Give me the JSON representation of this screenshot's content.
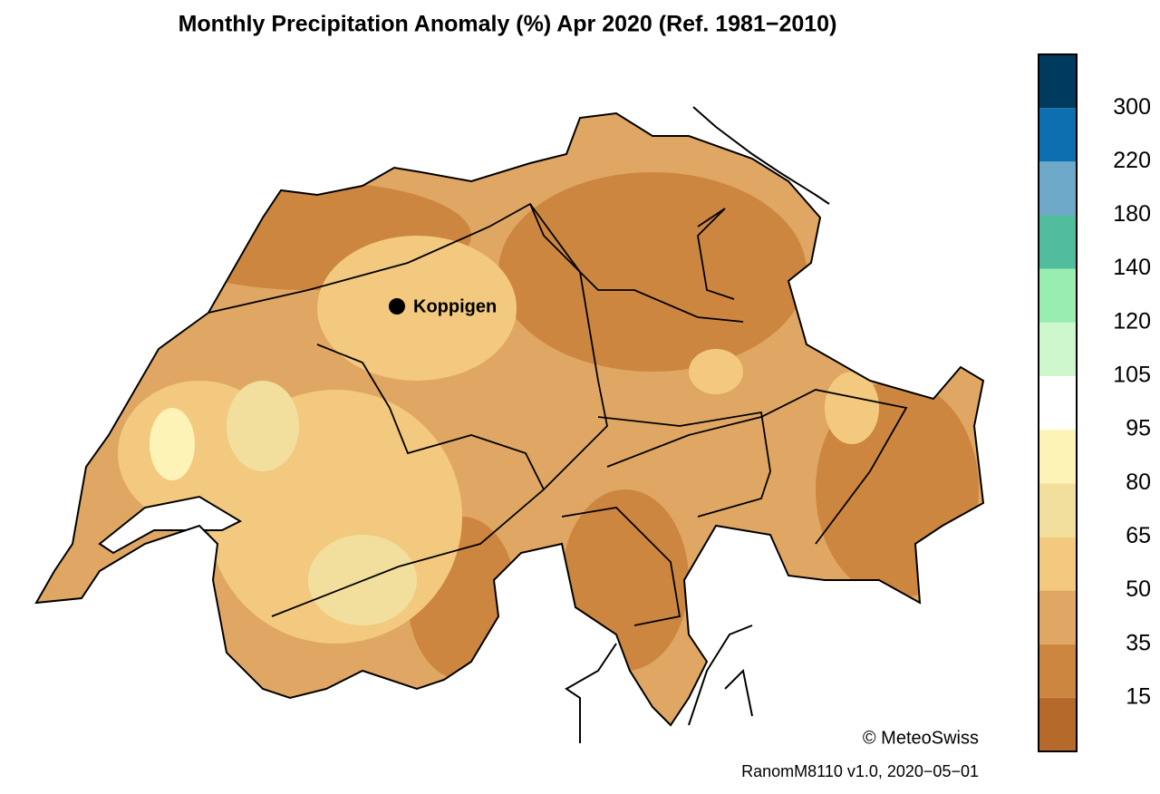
{
  "title": "Monthly Precipitation Anomaly (%) Apr 2020  (Ref. 1981−2010)",
  "location": {
    "label": "Koppigen"
  },
  "colorbar": {
    "colors": [
      "#b5692a",
      "#cc863f",
      "#dfa763",
      "#f2c97e",
      "#f3df9d",
      "#fdf3b6",
      "#ffffff",
      "#cdf7cc",
      "#98edb1",
      "#51bd9c",
      "#6fa9c9",
      "#0e6fb0",
      "#003a5e"
    ],
    "labels": [
      15,
      35,
      50,
      65,
      80,
      95,
      105,
      120,
      140,
      180,
      220,
      300
    ]
  },
  "copyright": "© MeteoSwiss",
  "footer": "RanomM8110 v1.0, 2020−05−01"
}
